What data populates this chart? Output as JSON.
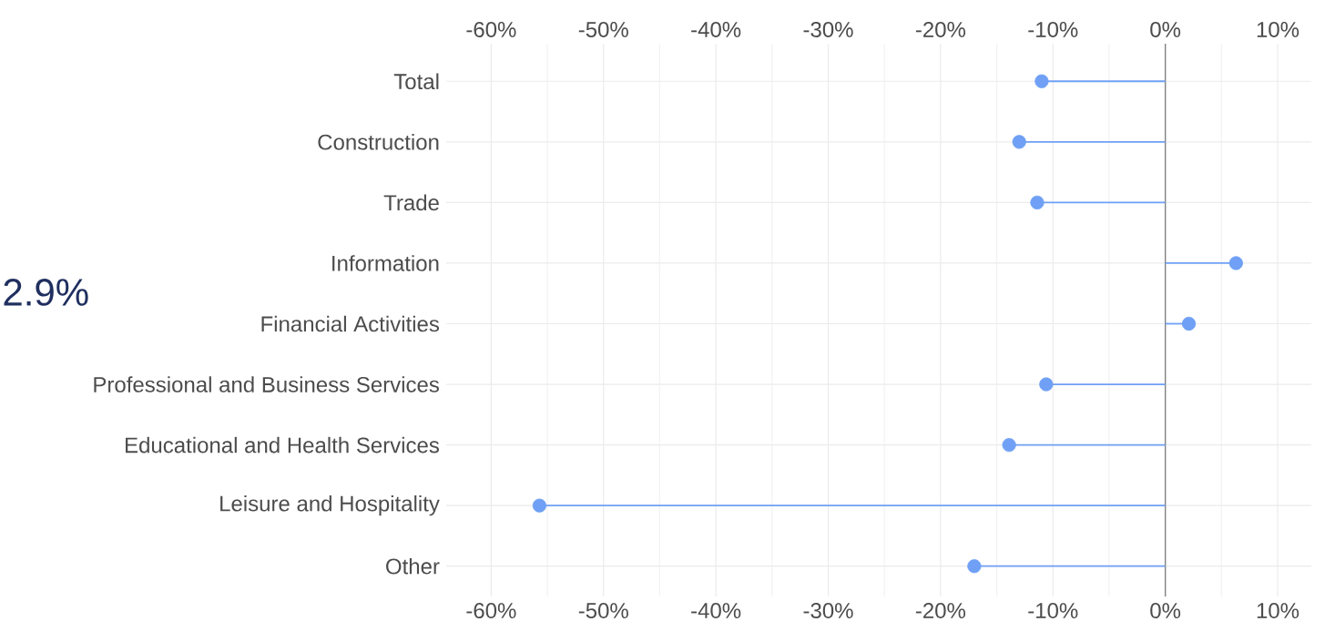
{
  "chart_data": {
    "type": "lollipop",
    "orientation": "horizontal",
    "categories": [
      "Total",
      "Construction",
      "Trade",
      "Information",
      "Financial Activities",
      "Professional and Business Services",
      "Educational and Health Services",
      "Leisure and Hospitality",
      "Other"
    ],
    "values": [
      -11.0,
      -13.0,
      -11.4,
      6.3,
      2.1,
      -10.6,
      -13.9,
      -55.7,
      -17.0
    ],
    "color": "#6fa0f5",
    "xlim": [
      -64,
      13
    ],
    "xticks": [
      {
        "value": -60,
        "label": "-60%"
      },
      {
        "value": -50,
        "label": "-50%"
      },
      {
        "value": -40,
        "label": "-40%"
      },
      {
        "value": -30,
        "label": "-30%"
      },
      {
        "value": -20,
        "label": "-20%"
      },
      {
        "value": -10,
        "label": "-10%"
      },
      {
        "value": 0,
        "label": "0%"
      },
      {
        "value": 10,
        "label": "10%"
      }
    ],
    "x2lim": [
      -64,
      13
    ],
    "x2ticks": [
      {
        "value": -60,
        "label": "-60%"
      },
      {
        "value": -50,
        "label": "-50%"
      },
      {
        "value": -40,
        "label": "-40%"
      },
      {
        "value": -30,
        "label": "-30%"
      },
      {
        "value": -20,
        "label": "-20%"
      },
      {
        "value": -10,
        "label": "-10%"
      },
      {
        "value": 0,
        "label": "0%"
      },
      {
        "value": 10,
        "label": "10%"
      }
    ],
    "grid": true,
    "marker": "circle",
    "annotations": [
      "2.9%"
    ]
  }
}
